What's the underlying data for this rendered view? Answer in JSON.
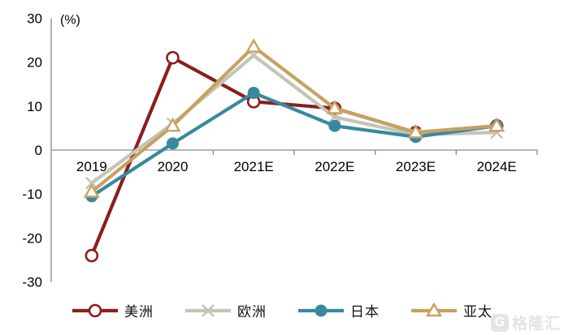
{
  "chart_data": {
    "type": "line",
    "title": "",
    "unit_label": "(%)",
    "categories": [
      "2019",
      "2020",
      "2021E",
      "2022E",
      "2023E",
      "2024E"
    ],
    "series": [
      {
        "name": "美洲",
        "color": "#8b1e1e",
        "marker": "circle-open",
        "values": [
          -24,
          21,
          11,
          9.5,
          4,
          5.5
        ]
      },
      {
        "name": "欧洲",
        "color": "#c4c4b7",
        "marker": "x",
        "values": [
          -7.5,
          6,
          21.5,
          7.5,
          3.5,
          4
        ]
      },
      {
        "name": "日本",
        "color": "#37899f",
        "marker": "circle-filled",
        "values": [
          -10.5,
          1.5,
          13,
          5.5,
          3,
          5.5
        ]
      },
      {
        "name": "亚太",
        "color": "#c7a160",
        "marker": "triangle-open",
        "values": [
          -9.5,
          5.5,
          23.5,
          9.5,
          4,
          5.5
        ]
      }
    ],
    "ylim": [
      -30,
      30
    ],
    "ytick_step": 10,
    "yticks": [
      "30",
      "20",
      "10",
      "0",
      "-10",
      "-20",
      "-30"
    ],
    "legend_position": "bottom",
    "grid": false,
    "axis_color": "#8c8c8c",
    "label_color": "#000000"
  },
  "watermark": {
    "icon_letter": "G",
    "text": "格隆汇"
  }
}
